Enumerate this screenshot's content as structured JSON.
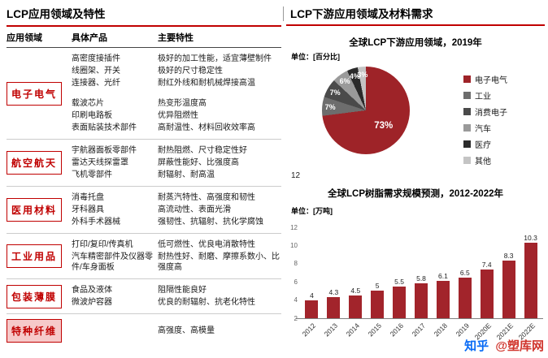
{
  "colors": {
    "accent_red": "#c00000",
    "pie_main_red": "#9e2328",
    "bar_red": "#a2242b",
    "watermark_blue": "#0a6cf5",
    "watermark_red": "#d0342c"
  },
  "left_section": {
    "title": "LCP应用领域及特性",
    "columns": [
      "应用领域",
      "具体产品",
      "主要特性"
    ],
    "groups": [
      {
        "field": "电子电气",
        "gap_after_row": 2,
        "rows": [
          {
            "product": "高密度接插件",
            "trait": "极好的加工性能，适宜薄壁制件"
          },
          {
            "product": "线圈架、开关",
            "trait": "极好的尺寸稳定性"
          },
          {
            "product": "连接器、光纤",
            "trait": "耐红外线和耐机械焊接高温"
          },
          {
            "product": "载波芯片",
            "trait": "热变形温度高"
          },
          {
            "product": "印刷电路板",
            "trait": "优异阻燃性"
          },
          {
            "product": "表面贴装技术部件",
            "trait": "高耐温性、材料回收效率高"
          }
        ]
      },
      {
        "field": "航空航天",
        "rows": [
          {
            "product": "宇航器面板零部件",
            "trait": "耐热阻燃、尺寸稳定性好"
          },
          {
            "product": "雷达天线探雷罩",
            "trait": "屏蔽性能好、比强度高"
          },
          {
            "product": "飞机零部件",
            "trait": "耐辐射、耐高温"
          }
        ]
      },
      {
        "field": "医用材料",
        "rows": [
          {
            "product": "消毒托盘",
            "trait": "耐蒸汽特性、高强度和韧性"
          },
          {
            "product": "牙科器具",
            "trait": "高流动性、表面光滑"
          },
          {
            "product": "外科手术器械",
            "trait": "强韧性、抗辐射、抗化学腐蚀"
          }
        ]
      },
      {
        "field": "工业用品",
        "rows": [
          {
            "product": "打印/复印/传真机",
            "trait": "低可燃性、优良电消散特性"
          },
          {
            "product": "汽车精密部件及仪器零件/车身面板",
            "trait": "耐热性好、耐磨、摩擦系数小、比强度高"
          }
        ]
      },
      {
        "field": "包装薄膜",
        "rows": [
          {
            "product": "食品及液体",
            "trait": "阻隔性能良好"
          },
          {
            "product": "微波炉容器",
            "trait": "优良的耐辐射、抗老化特性"
          }
        ]
      },
      {
        "field": "特种纤维",
        "filled": true,
        "rows": [
          {
            "product": "",
            "trait": "高强度、高模量"
          }
        ]
      }
    ]
  },
  "right_section": {
    "title": "LCP下游应用领域及材料需求",
    "page_number": "12"
  },
  "watermark": {
    "brand": "知乎",
    "handle": "@塑库网"
  },
  "chart_data": [
    {
      "type": "pie",
      "title": "全球LCP下游应用领域，2019年",
      "unit": "单位：[百分比]",
      "labels": [
        "电子电气",
        "工业",
        "消费电子",
        "汽车",
        "医疗",
        "其他"
      ],
      "values": [
        73,
        7,
        7,
        6,
        4,
        3
      ],
      "value_labels": [
        "73%",
        "7%",
        "7%",
        "6%",
        "4%",
        "3%"
      ],
      "colors": [
        "#9e2328",
        "#6d6d6d",
        "#4a4a4a",
        "#9a9a9a",
        "#2b2b2b",
        "#c4c4c4"
      ],
      "legend_position": "right"
    },
    {
      "type": "bar",
      "title": "全球LCP树脂需求规模预测，2012-2022年",
      "unit": "单位：[万吨]",
      "categories": [
        "2012",
        "2013",
        "2014",
        "2015",
        "2016",
        "2017",
        "2018",
        "2019",
        "2020E",
        "2021E",
        "2022E"
      ],
      "values": [
        4,
        4.3,
        4.5,
        5,
        5.5,
        5.8,
        6.1,
        6.5,
        7.4,
        8.3,
        10.3
      ],
      "ylim": [
        2,
        12
      ],
      "yticks": [
        2,
        4,
        6,
        8,
        10,
        12
      ],
      "bar_color": "#a2242b",
      "grid": false
    }
  ]
}
